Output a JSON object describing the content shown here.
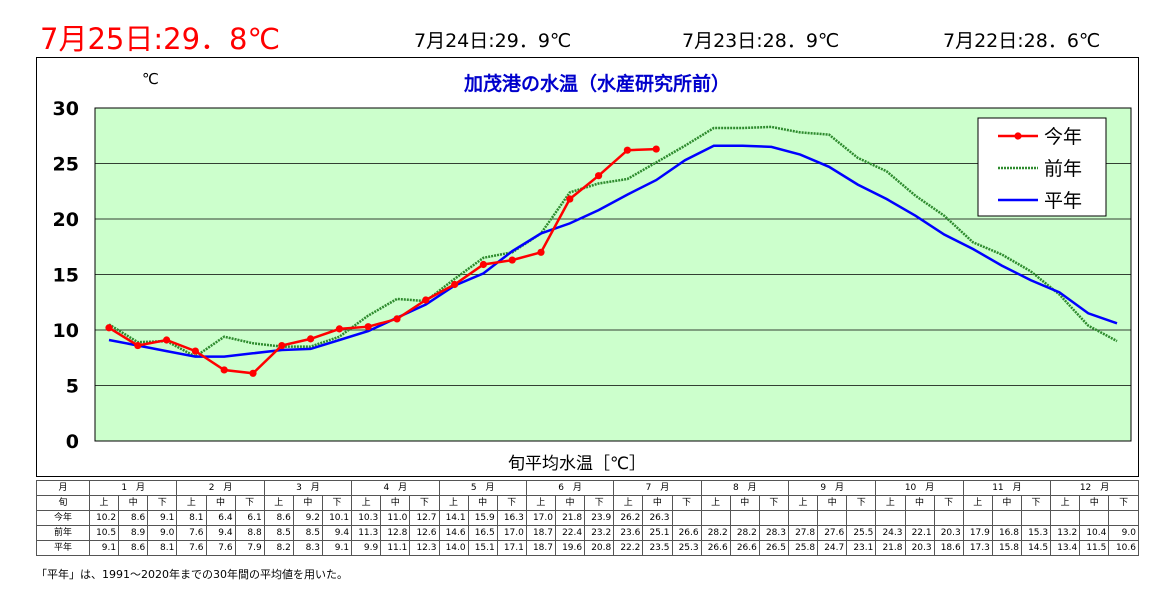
{
  "header": {
    "today": "7月25日:29．8℃",
    "prev": [
      "7月24日:29．9℃",
      "7月23日:28．9℃",
      "7月22日:28．6℃"
    ]
  },
  "chart_data": {
    "type": "line",
    "title": "加茂港の水温（水産研究所前）",
    "unit_label": "℃",
    "xlabel": "旬平均水温［℃］",
    "ylim": [
      0,
      30
    ],
    "y_ticks": [
      "0",
      "5",
      "10",
      "15",
      "20",
      "25",
      "30"
    ],
    "grid": true,
    "legend_position": "top-right",
    "categories": [
      "1月上",
      "1月中",
      "1月下",
      "2月上",
      "2月中",
      "2月下",
      "3月上",
      "3月中",
      "3月下",
      "4月上",
      "4月中",
      "4月下",
      "5月上",
      "5月中",
      "5月下",
      "6月上",
      "6月中",
      "6月下",
      "7月上",
      "7月中",
      "7月下",
      "8月上",
      "8月中",
      "8月下",
      "9月上",
      "9月中",
      "9月下",
      "10月上",
      "10月中",
      "10月下",
      "11月上",
      "11月中",
      "11月下",
      "12月上",
      "12月中",
      "12月下"
    ],
    "series": [
      {
        "name": "今年",
        "color": "#ff0000",
        "values": [
          10.2,
          8.6,
          9.1,
          8.1,
          6.4,
          6.1,
          8.6,
          9.2,
          10.1,
          10.3,
          11.0,
          12.7,
          14.1,
          15.9,
          16.3,
          17.0,
          21.8,
          23.9,
          26.2,
          26.3,
          null,
          null,
          null,
          null,
          null,
          null,
          null,
          null,
          null,
          null,
          null,
          null,
          null,
          null,
          null,
          null
        ]
      },
      {
        "name": "前年",
        "color": "#2e8b2e",
        "values": [
          10.5,
          8.9,
          9.0,
          7.6,
          9.4,
          8.8,
          8.5,
          8.5,
          9.4,
          11.3,
          12.8,
          12.6,
          14.6,
          16.5,
          17.0,
          18.7,
          22.4,
          23.2,
          23.6,
          25.1,
          26.6,
          28.2,
          28.2,
          28.3,
          27.8,
          27.6,
          25.5,
          24.3,
          22.1,
          20.3,
          17.9,
          16.8,
          15.3,
          13.2,
          10.4,
          9.0
        ]
      },
      {
        "name": "平年",
        "color": "#0000ff",
        "values": [
          9.1,
          8.6,
          8.1,
          7.6,
          7.6,
          7.9,
          8.2,
          8.3,
          9.1,
          9.9,
          11.1,
          12.3,
          14.0,
          15.1,
          17.1,
          18.7,
          19.6,
          20.8,
          22.2,
          23.5,
          25.3,
          26.6,
          26.6,
          26.5,
          25.8,
          24.7,
          23.1,
          21.8,
          20.3,
          18.6,
          17.3,
          15.8,
          14.5,
          13.4,
          11.5,
          10.6
        ]
      }
    ]
  },
  "table": {
    "month_header": "月",
    "period_header": "旬",
    "months": [
      "1　月",
      "2　月",
      "3　月",
      "4　月",
      "5　月",
      "6　月",
      "7　月",
      "8　月",
      "9　月",
      "10　月",
      "11　月",
      "12　月"
    ],
    "periods": [
      "上",
      "中",
      "下"
    ],
    "rows": [
      {
        "label": "今年",
        "values": [
          "10.2",
          "8.6",
          "9.1",
          "8.1",
          "6.4",
          "6.1",
          "8.6",
          "9.2",
          "10.1",
          "10.3",
          "11.0",
          "12.7",
          "14.1",
          "15.9",
          "16.3",
          "17.0",
          "21.8",
          "23.9",
          "26.2",
          "26.3",
          "",
          "",
          "",
          "",
          "",
          "",
          "",
          "",
          "",
          "",
          "",
          "",
          "",
          "",
          "",
          ""
        ]
      },
      {
        "label": "前年",
        "values": [
          "10.5",
          "8.9",
          "9.0",
          "7.6",
          "9.4",
          "8.8",
          "8.5",
          "8.5",
          "9.4",
          "11.3",
          "12.8",
          "12.6",
          "14.6",
          "16.5",
          "17.0",
          "18.7",
          "22.4",
          "23.2",
          "23.6",
          "25.1",
          "26.6",
          "28.2",
          "28.2",
          "28.3",
          "27.8",
          "27.6",
          "25.5",
          "24.3",
          "22.1",
          "20.3",
          "17.9",
          "16.8",
          "15.3",
          "13.2",
          "10.4",
          "9.0"
        ]
      },
      {
        "label": "平年",
        "values": [
          "9.1",
          "8.6",
          "8.1",
          "7.6",
          "7.6",
          "7.9",
          "8.2",
          "8.3",
          "9.1",
          "9.9",
          "11.1",
          "12.3",
          "14.0",
          "15.1",
          "17.1",
          "18.7",
          "19.6",
          "20.8",
          "22.2",
          "23.5",
          "25.3",
          "26.6",
          "26.6",
          "26.5",
          "25.8",
          "24.7",
          "23.1",
          "21.8",
          "20.3",
          "18.6",
          "17.3",
          "15.8",
          "14.5",
          "13.4",
          "11.5",
          "10.6"
        ]
      }
    ]
  },
  "footnote": "「平年」は、1991～2020年までの30年間の平均値を用いた。"
}
